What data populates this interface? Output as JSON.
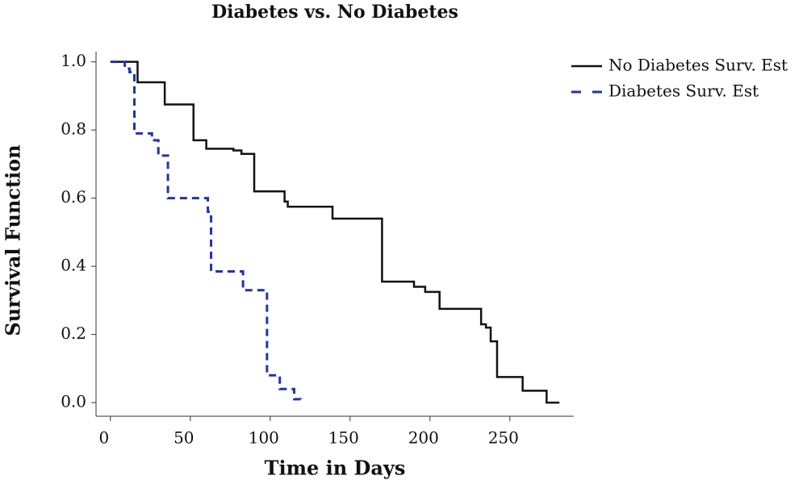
{
  "chart_data": {
    "type": "step",
    "title": "Diabetes vs. No Diabetes",
    "x_label": "Time in Days",
    "y_label": "Survival Function",
    "xlim": [
      -9,
      290
    ],
    "ylim": [
      -0.04,
      1.03
    ],
    "xticks": [
      0,
      50,
      100,
      150,
      200,
      250
    ],
    "yticks": [
      {
        "value": 0,
        "label": "0.0"
      },
      0.2,
      0.4,
      0.6,
      0.8,
      {
        "value": 1,
        "label": "1.0"
      }
    ],
    "legend": "top-right",
    "series": [
      {
        "name": "No Diabetes Surv. Est",
        "color": "#111111",
        "dash": "solid",
        "x": [
          0,
          17,
          34,
          52,
          60,
          77,
          82,
          90,
          109,
          111,
          139,
          170,
          190,
          197,
          206,
          232,
          235,
          238,
          242,
          258,
          273,
          281
        ],
        "values": [
          1,
          0.94,
          0.875,
          0.77,
          0.745,
          0.74,
          0.73,
          0.62,
          0.59,
          0.575,
          0.54,
          0.355,
          0.34,
          0.325,
          0.275,
          0.23,
          0.22,
          0.18,
          0.075,
          0.035,
          0,
          0
        ]
      },
      {
        "name": "Diabetes Surv. Est",
        "color": "#2233aa",
        "dash": "dashed",
        "x": [
          0,
          9,
          12,
          15,
          26,
          30,
          36,
          61,
          63,
          83,
          98,
          106,
          115,
          119
        ],
        "values": [
          1,
          0.98,
          0.97,
          0.79,
          0.77,
          0.725,
          0.6,
          0.56,
          0.385,
          0.33,
          0.08,
          0.04,
          0.01,
          0
        ]
      }
    ]
  }
}
